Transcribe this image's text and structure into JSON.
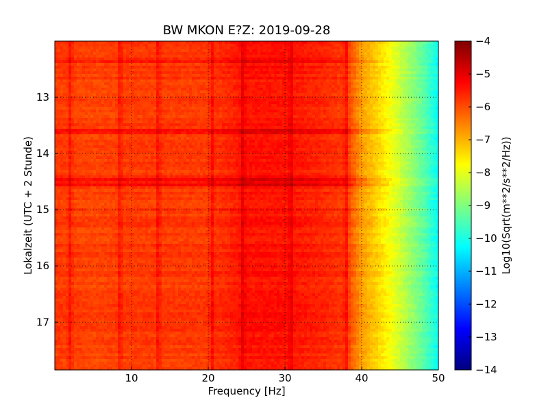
{
  "chart_data": {
    "type": "heatmap",
    "title": "BW MKON E?Z: 2019-09-28",
    "xlabel": "Frequency [Hz]",
    "ylabel": "Lokalzeit (UTC + 2 Stunde)",
    "colorbar_label": "Log10(Sqrt(m**2/s**2/Hz))",
    "xlim": [
      0,
      50
    ],
    "ylim": [
      17.85,
      12.0
    ],
    "x_ticks": [
      10,
      20,
      30,
      40,
      50
    ],
    "y_ticks": [
      13,
      14,
      15,
      16,
      17
    ],
    "colorbar_range": [
      -14,
      -4
    ],
    "colorbar_ticks": [
      -4,
      -5,
      -6,
      -7,
      -8,
      -9,
      -10,
      -11,
      -12,
      -13,
      -14
    ],
    "colormap": "jet",
    "grid": true,
    "grid_style": "dotted",
    "spectrum_profile": {
      "frequency_hz": [
        0,
        5,
        10,
        20,
        25,
        30,
        35,
        38,
        40,
        42,
        44,
        46,
        48,
        50
      ],
      "log10_amplitude": [
        -5.8,
        -5.9,
        -5.8,
        -5.8,
        -5.4,
        -5.4,
        -5.6,
        -5.8,
        -6.8,
        -7.3,
        -7.9,
        -8.6,
        -9.3,
        -10.2
      ]
    },
    "strong_frequency_lines_hz": [
      2,
      8.5,
      13.5,
      20.5,
      24.5,
      30.8,
      38.0
    ],
    "strong_time_bands_hour": [
      12.35,
      13.6,
      14.45,
      14.55
    ]
  }
}
